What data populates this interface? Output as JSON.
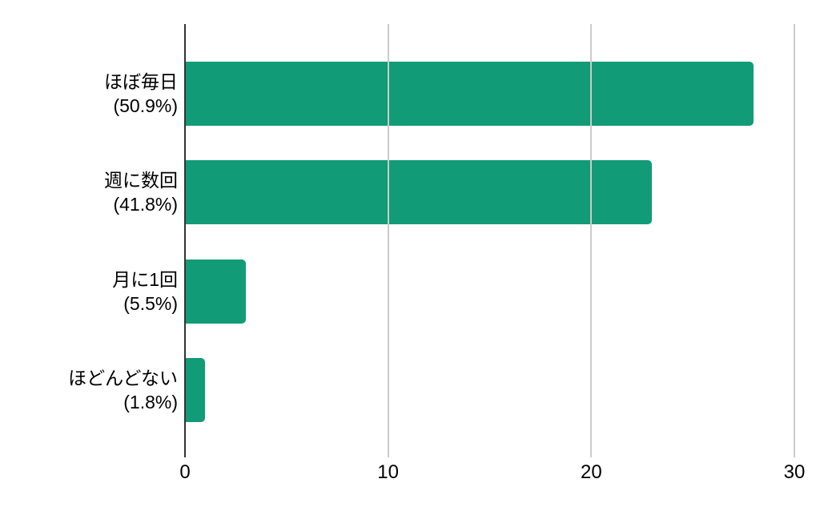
{
  "chart_data": {
    "type": "bar",
    "orientation": "horizontal",
    "title": "",
    "xlabel": "",
    "ylabel": "",
    "categories": [
      "ほぼ毎日",
      "週に数回",
      "月に1回",
      "ほどんどない"
    ],
    "percent_labels": [
      "(50.9%)",
      "(41.8%)",
      "(5.5%)",
      "(1.8%)"
    ],
    "values": [
      28,
      23,
      3,
      1
    ],
    "percentages": [
      50.9,
      41.8,
      5.5,
      1.8
    ],
    "x_ticks": [
      0,
      10,
      20,
      30
    ],
    "xlim": [
      0,
      30
    ],
    "grid": true,
    "legend": "none",
    "bar_color": "#119b76",
    "gridline_color": "#cccccc",
    "axis_line_color": "#333333",
    "text_color": "#000000",
    "background_color": "#ffffff"
  }
}
